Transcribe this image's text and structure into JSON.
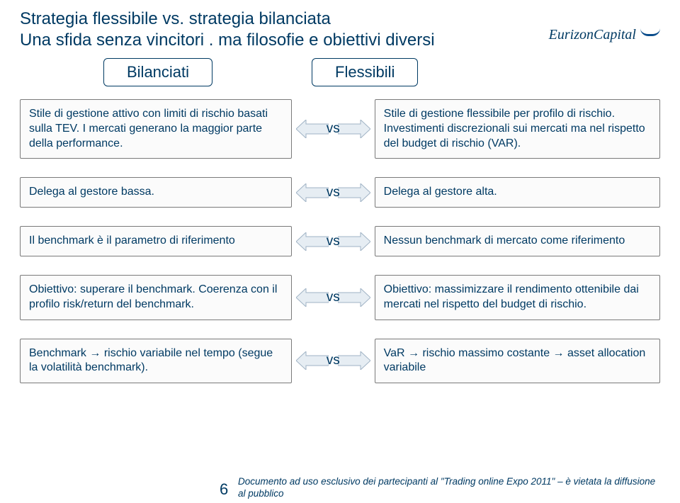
{
  "title_l1": "Strategia flessibile vs. strategia bilanciata",
  "title_l2": "Una sfida senza vincitori . ma filosofie e obiettivi diversi",
  "logo": "EurizonCapital",
  "headers": {
    "left": "Bilanciati",
    "right": "Flessibili"
  },
  "vs": "vs",
  "rows": [
    {
      "l": "Stile di gestione attivo con limiti di rischio basati sulla TEV. I mercati generano la maggior parte della performance.",
      "r": "Stile di gestione flessibile per profilo di rischio. Investimenti discrezionali sui mercati ma nel rispetto del budget di rischio (VAR)."
    },
    {
      "l": "Delega al gestore bassa.",
      "r": "Delega al gestore alta."
    },
    {
      "l": "Il benchmark è il parametro di riferimento",
      "r": "Nessun benchmark di mercato come riferimento"
    },
    {
      "l": "Obiettivo: superare il benchmark. Coerenza con il profilo risk/return del benchmark.",
      "r": "Obiettivo: massimizzare il rendimento ottenibile dai mercati nel rispetto del budget di rischio."
    },
    {
      "l": "Benchmark → rischio variabile nel tempo (segue la volatilità benchmark).",
      "r": "VaR → rischio massimo costante → asset allocation variabile"
    }
  ],
  "page_num": "6",
  "footer": "Documento ad uso esclusivo dei partecipanti al \"Trading online Expo 2011\" – è vietata la diffusione al pubblico",
  "style": {
    "text_color": "#003a63",
    "box_border": "#7a7a7a",
    "box_bg": "#fbfbfb",
    "arrow_fill": "#e6edf3",
    "arrow_stroke": "#9fb2c4",
    "fontsize_title": 24,
    "fontsize_header": 22,
    "fontsize_body": 16,
    "fontsize_vs": 19,
    "fontsize_footer": 13.5
  }
}
